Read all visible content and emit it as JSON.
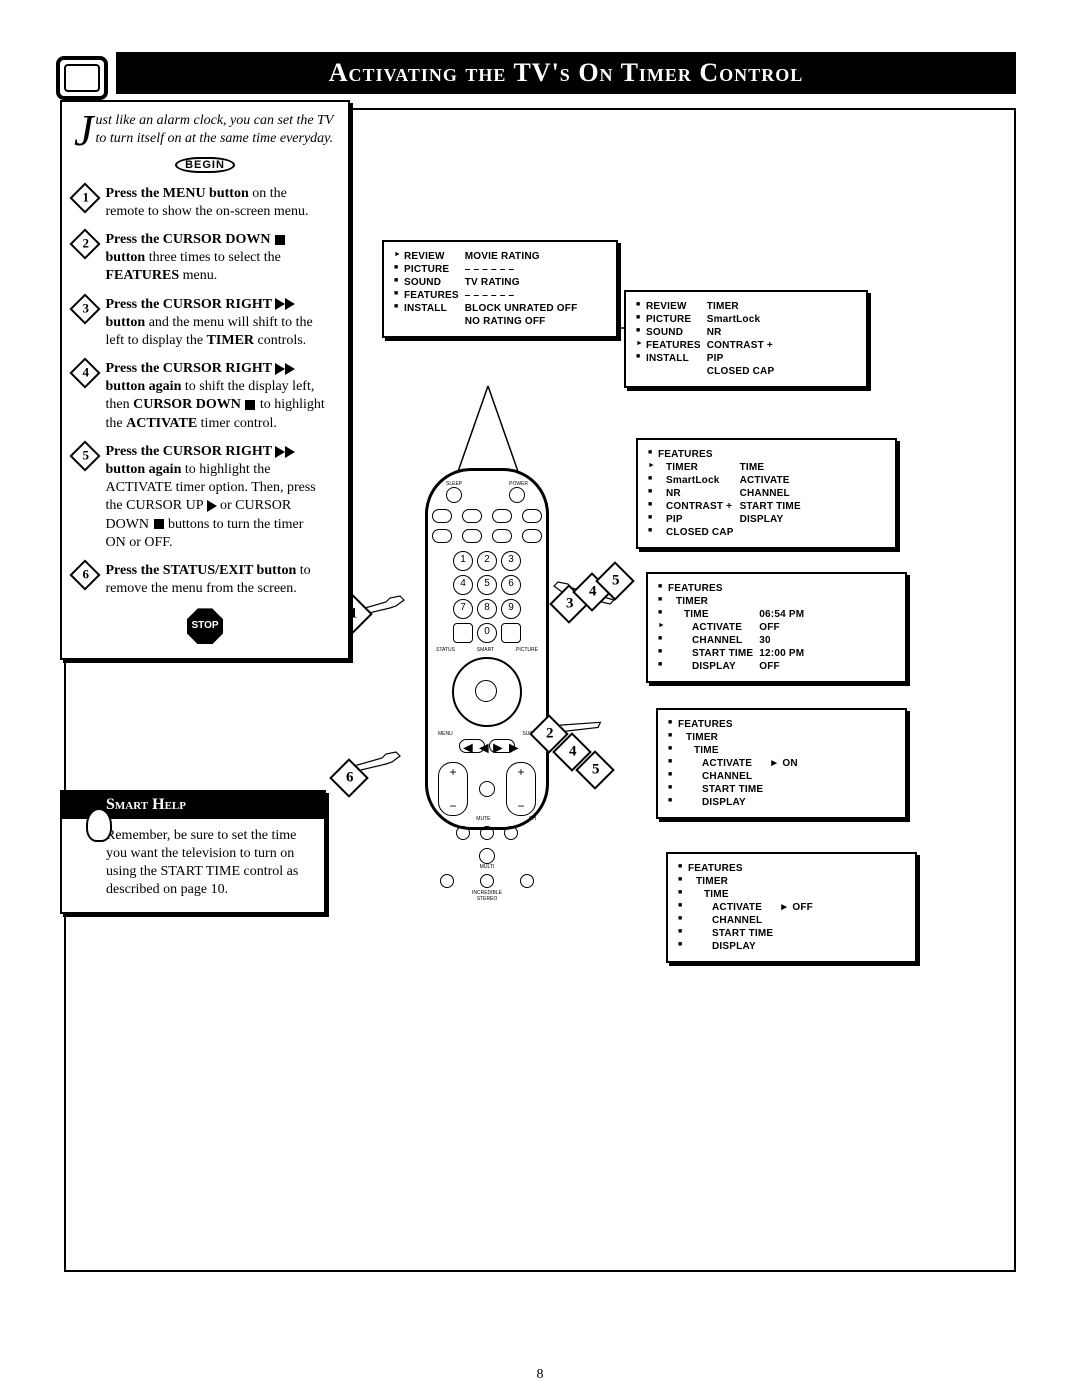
{
  "title": "Activating the TV's On Timer Control",
  "page_number": "8",
  "intro": {
    "dropcap": "J",
    "text": "ust like an alarm clock, you can set the TV to turn itself on at the same time everyday."
  },
  "begin_label": "BEGIN",
  "stop_label": "STOP",
  "steps": [
    {
      "n": "1",
      "bold": "Press the MENU button",
      "rest": " on the remote to show the on-screen menu."
    },
    {
      "n": "2",
      "bold": "Press the CURSOR DOWN ■ button",
      "rest": " three times to select the ",
      "bold2": "FEATURES",
      "rest2": " menu."
    },
    {
      "n": "3",
      "bold": "Press the CURSOR RIGHT ▶▶ button",
      "rest": " and the menu will shift to the left to display the ",
      "bold2": "TIMER",
      "rest2": " controls."
    },
    {
      "n": "4",
      "bold": "Press the CURSOR RIGHT ▶▶ button again",
      "rest": " to shift the display left, then ",
      "bold2": "CURSOR DOWN ■",
      "rest2": " to highlight the ",
      "bold3": "ACTIVATE",
      "rest3": " timer control."
    },
    {
      "n": "5",
      "bold": "Press the CURSOR RIGHT ▶▶ button again",
      "rest": " to highlight the ACTIVATE timer option. Then, press the CURSOR UP ▶ or CURSOR DOWN ■ buttons to turn the timer ON or OFF."
    },
    {
      "n": "6",
      "bold": "Press the STATUS/EXIT button",
      "rest": " to remove the menu from the screen."
    }
  ],
  "smart_help": {
    "header": "Smart Help",
    "body": "Remember, be sure to set the time you want the television to turn on using the START TIME control as described on page 10."
  },
  "menus": {
    "top_left": {
      "rows": [
        [
          "REVIEW",
          "MOVIE RATING"
        ],
        [
          "PICTURE",
          "– – – – – –"
        ],
        [
          "SOUND",
          "TV RATING"
        ],
        [
          "FEATURES",
          "– – – – – –"
        ],
        [
          "INSTALL",
          "BLOCK UNRATED  OFF"
        ],
        [
          "",
          "NO RATING        OFF"
        ]
      ],
      "cursor_row": 0
    },
    "top_right": {
      "rows": [
        [
          "REVIEW",
          "TIMER"
        ],
        [
          "PICTURE",
          "SmartLock"
        ],
        [
          "SOUND",
          "NR"
        ],
        [
          "FEATURES",
          "CONTRAST +"
        ],
        [
          "INSTALL",
          "PIP"
        ],
        [
          "",
          "CLOSED CAP"
        ]
      ],
      "cursor_row": 3
    },
    "m2": {
      "rows": [
        [
          "FEATURES",
          ""
        ],
        [
          "TIMER",
          "TIME"
        ],
        [
          "SmartLock",
          "ACTIVATE"
        ],
        [
          "NR",
          "CHANNEL"
        ],
        [
          "CONTRAST +",
          "START TIME"
        ],
        [
          "PIP",
          "DISPLAY"
        ],
        [
          "CLOSED CAP",
          ""
        ]
      ],
      "cursor_row": 1
    },
    "m3": {
      "rows": [
        [
          "FEATURES",
          ""
        ],
        [
          "TIMER",
          ""
        ],
        [
          "TIME",
          "06:54 PM"
        ],
        [
          "ACTIVATE",
          "OFF"
        ],
        [
          "CHANNEL",
          "30"
        ],
        [
          "START TIME",
          "12:00 PM"
        ],
        [
          "DISPLAY",
          "OFF"
        ]
      ],
      "cursor_row": 3
    },
    "m4": {
      "rows": [
        [
          "FEATURES",
          ""
        ],
        [
          "TIMER",
          ""
        ],
        [
          "TIME",
          ""
        ],
        [
          "ACTIVATE",
          "ON"
        ],
        [
          "CHANNEL",
          ""
        ],
        [
          "START TIME",
          ""
        ],
        [
          "DISPLAY",
          ""
        ]
      ],
      "value_mark_row": 3
    },
    "m5": {
      "rows": [
        [
          "FEATURES",
          ""
        ],
        [
          "TIMER",
          ""
        ],
        [
          "TIME",
          ""
        ],
        [
          "ACTIVATE",
          "OFF"
        ],
        [
          "CHANNEL",
          ""
        ],
        [
          "START TIME",
          ""
        ],
        [
          "DISPLAY",
          ""
        ]
      ],
      "value_mark_row": 3
    }
  },
  "remote_labels": {
    "sleep": "SLEEP",
    "power": "POWER",
    "tv": "TV",
    "cd": "CD",
    "onoff": "ON/OFF",
    "position": "POSITION",
    "freeze": "FREEZE",
    "vcr": "VCR",
    "source": "SOURCE",
    "swap": "SWAP",
    "chsize": "CH/SIZE",
    "av": "A/V",
    "menu": "MENU",
    "status": "STATUS",
    "smart": "SMART",
    "picture": "PICTURE",
    "surf": "SURF",
    "vol": "VOL",
    "ch": "CH",
    "mute": "MUTE",
    "cc": "CC",
    "dsound": "D.SOUND",
    "flash": "FLASH",
    "multi": "MULTI",
    "rewind": "REWIND",
    "media": "MEDIA",
    "incredible": "INCREDIBLE",
    "stereo": "STEREO",
    "record": "RECORD",
    "fvew": "FVEW"
  },
  "callouts": [
    "1",
    "2",
    "3",
    "4",
    "5",
    "6"
  ],
  "colors": {
    "black": "#000000",
    "white": "#ffffff"
  }
}
